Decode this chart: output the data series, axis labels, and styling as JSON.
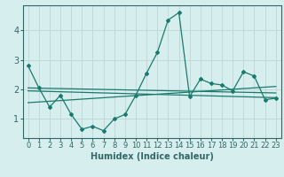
{
  "title": "",
  "xlabel": "Humidex (Indice chaleur)",
  "background_color": "#d6eeee",
  "grid_color": "#c0d8d8",
  "line_color": "#1a7a6e",
  "x_ticks": [
    0,
    1,
    2,
    3,
    4,
    5,
    6,
    7,
    8,
    9,
    10,
    11,
    12,
    13,
    14,
    15,
    16,
    17,
    18,
    19,
    20,
    21,
    22,
    23
  ],
  "y_ticks": [
    1,
    2,
    3,
    4
  ],
  "ylim": [
    0.35,
    4.85
  ],
  "xlim": [
    -0.5,
    23.5
  ],
  "series1": [
    2.8,
    2.05,
    1.4,
    1.8,
    1.15,
    0.65,
    0.75,
    0.6,
    1.0,
    1.15,
    1.8,
    2.55,
    3.25,
    4.35,
    4.6,
    1.75,
    2.35,
    2.2,
    2.15,
    1.95,
    2.6,
    2.45,
    1.65,
    1.7
  ],
  "series2_x": [
    0,
    23
  ],
  "series2_y": [
    1.55,
    2.1
  ],
  "series3_x": [
    0,
    23
  ],
  "series3_y": [
    1.95,
    1.72
  ],
  "series4_x": [
    0,
    23
  ],
  "series4_y": [
    2.05,
    1.88
  ],
  "tick_fontsize": 6,
  "xlabel_fontsize": 7,
  "spine_color": "#336666",
  "tick_color": "#336666"
}
